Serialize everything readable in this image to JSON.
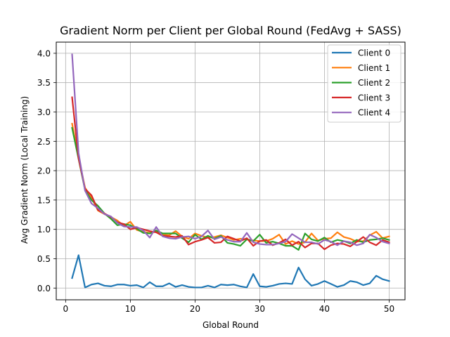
{
  "chart_data": {
    "type": "line",
    "title": "Gradient Norm per Client per Global Round (FedAvg + SASS)",
    "xlabel": "Global Round",
    "ylabel": "Avg Gradient Norm (Local Training)",
    "xlim": [
      -1.45,
      52.45
    ],
    "ylim": [
      -0.2,
      4.19
    ],
    "xticks": [
      0,
      10,
      20,
      30,
      40,
      50
    ],
    "yticks": [
      "0.0",
      "0.5",
      "1.0",
      "1.5",
      "2.0",
      "2.5",
      "3.0",
      "3.5",
      "4.0"
    ],
    "grid": true,
    "legend_position": "top-right",
    "x": [
      1,
      2,
      3,
      4,
      5,
      6,
      7,
      8,
      9,
      10,
      11,
      12,
      13,
      14,
      15,
      16,
      17,
      18,
      19,
      20,
      21,
      22,
      23,
      24,
      25,
      26,
      27,
      28,
      29,
      30,
      31,
      32,
      33,
      34,
      35,
      36,
      37,
      38,
      39,
      40,
      41,
      42,
      43,
      44,
      45,
      46,
      47,
      48,
      49,
      50
    ],
    "series": [
      {
        "name": "Client 0",
        "color": "#1f77b4",
        "values": [
          0.17,
          0.56,
          0.01,
          0.06,
          0.08,
          0.04,
          0.03,
          0.06,
          0.06,
          0.04,
          0.05,
          0.01,
          0.1,
          0.03,
          0.03,
          0.08,
          0.02,
          0.05,
          0.02,
          0.01,
          0.01,
          0.04,
          0.01,
          0.06,
          0.05,
          0.06,
          0.03,
          0.01,
          0.24,
          0.03,
          0.02,
          0.04,
          0.07,
          0.08,
          0.07,
          0.35,
          0.15,
          0.04,
          0.07,
          0.12,
          0.07,
          0.02,
          0.05,
          0.12,
          0.1,
          0.05,
          0.08,
          0.21,
          0.15,
          0.12
        ]
      },
      {
        "name": "Client 1",
        "color": "#ff7f0e",
        "values": [
          2.8,
          2.23,
          1.71,
          1.54,
          1.32,
          1.26,
          1.21,
          1.15,
          1.06,
          1.13,
          0.99,
          0.96,
          0.94,
          0.96,
          0.91,
          0.9,
          0.97,
          0.88,
          0.84,
          0.93,
          0.89,
          0.86,
          0.87,
          0.9,
          0.86,
          0.82,
          0.84,
          0.83,
          0.81,
          0.8,
          0.8,
          0.84,
          0.91,
          0.75,
          0.8,
          0.75,
          0.78,
          0.93,
          0.81,
          0.84,
          0.85,
          0.95,
          0.87,
          0.84,
          0.79,
          0.8,
          0.9,
          0.96,
          0.85,
          0.88
        ]
      },
      {
        "name": "Client 2",
        "color": "#2ca02c",
        "values": [
          2.73,
          2.2,
          1.67,
          1.5,
          1.4,
          1.27,
          1.18,
          1.07,
          1.09,
          1.07,
          1.01,
          0.94,
          0.93,
          0.98,
          0.93,
          0.93,
          0.93,
          0.85,
          0.78,
          0.91,
          0.83,
          0.89,
          0.84,
          0.89,
          0.77,
          0.75,
          0.72,
          0.83,
          0.8,
          0.91,
          0.77,
          0.79,
          0.76,
          0.72,
          0.72,
          0.65,
          0.93,
          0.83,
          0.8,
          0.86,
          0.78,
          0.82,
          0.8,
          0.76,
          0.82,
          0.78,
          0.82,
          0.83,
          0.85,
          0.82
        ]
      },
      {
        "name": "Client 3",
        "color": "#d62728",
        "values": [
          3.25,
          2.21,
          1.69,
          1.58,
          1.33,
          1.27,
          1.21,
          1.12,
          1.09,
          1.0,
          1.03,
          1.0,
          0.97,
          0.95,
          0.89,
          0.88,
          0.87,
          0.89,
          0.74,
          0.79,
          0.82,
          0.86,
          0.77,
          0.78,
          0.88,
          0.84,
          0.8,
          0.85,
          0.72,
          0.8,
          0.82,
          0.73,
          0.77,
          0.83,
          0.73,
          0.79,
          0.69,
          0.76,
          0.76,
          0.66,
          0.73,
          0.76,
          0.75,
          0.71,
          0.79,
          0.87,
          0.78,
          0.73,
          0.82,
          0.78
        ]
      },
      {
        "name": "Client 4",
        "color": "#9467bd",
        "values": [
          3.98,
          2.3,
          1.66,
          1.44,
          1.36,
          1.26,
          1.22,
          1.11,
          1.05,
          1.04,
          1.04,
          0.98,
          0.86,
          1.04,
          0.88,
          0.85,
          0.84,
          0.87,
          0.88,
          0.84,
          0.88,
          0.98,
          0.83,
          0.87,
          0.82,
          0.79,
          0.79,
          0.94,
          0.78,
          0.75,
          0.74,
          0.74,
          0.76,
          0.79,
          0.92,
          0.85,
          0.78,
          0.78,
          0.75,
          0.82,
          0.79,
          0.73,
          0.8,
          0.78,
          0.73,
          0.76,
          0.91,
          0.86,
          0.79,
          0.76
        ]
      }
    ]
  }
}
